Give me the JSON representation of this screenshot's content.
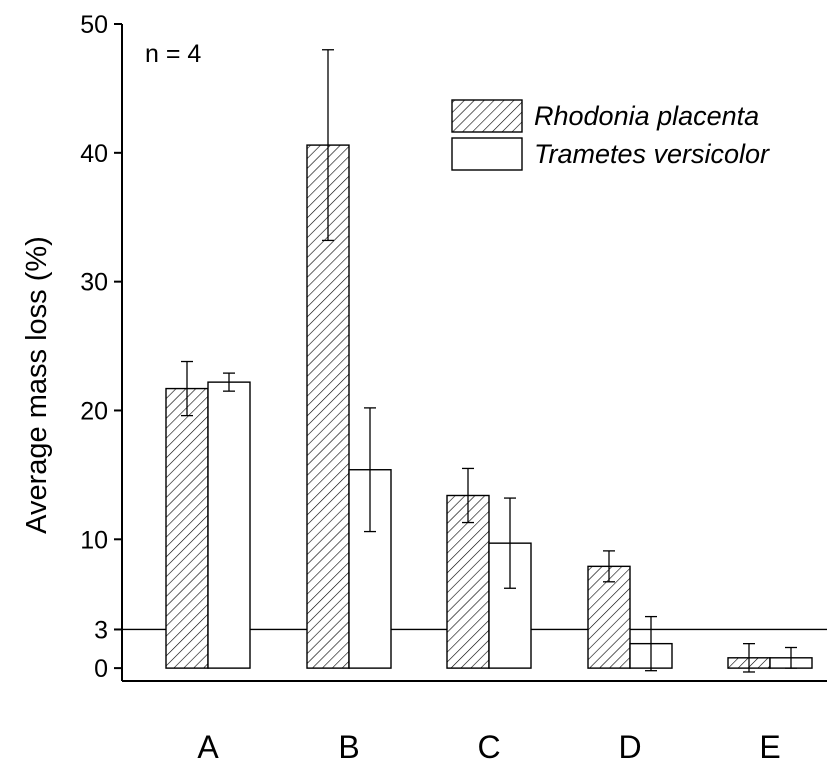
{
  "chart_data": {
    "type": "bar",
    "annotation": "n = 4",
    "ylabel": "Average mass loss (%)",
    "xlabel": "",
    "ylim": [
      -1,
      50
    ],
    "yticks": [
      0,
      3,
      10,
      20,
      30,
      40,
      50
    ],
    "reference_line": 3,
    "categories": [
      "A",
      "B",
      "C",
      "D",
      "E"
    ],
    "legend_position": "top-right",
    "series": [
      {
        "name": "Rhodonia placenta",
        "fill": "hatched",
        "values": [
          21.7,
          40.6,
          13.4,
          7.9,
          0.8
        ],
        "errors": [
          2.1,
          7.4,
          2.1,
          1.2,
          1.1
        ]
      },
      {
        "name": "Trametes versicolor",
        "fill": "white",
        "values": [
          22.2,
          15.4,
          9.7,
          1.9,
          0.8
        ],
        "errors": [
          0.7,
          4.8,
          3.5,
          2.1,
          0.8
        ]
      }
    ],
    "colors": {
      "stroke": "#000000",
      "background": "#ffffff"
    }
  }
}
